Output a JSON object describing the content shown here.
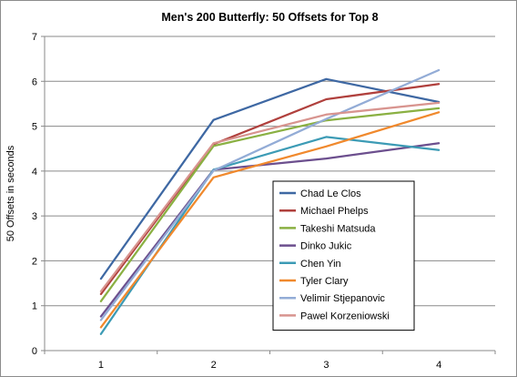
{
  "chart_data": {
    "type": "line",
    "title": "Men's 200 Butterfly: 50 Offsets for Top 8",
    "xlabel": "",
    "ylabel": "50 Offsets in seconds",
    "x": [
      1,
      2,
      3,
      4
    ],
    "xlim": [
      0.5,
      4.5
    ],
    "ylim": [
      0,
      7
    ],
    "yticks": [
      0,
      1,
      2,
      3,
      4,
      5,
      6,
      7
    ],
    "grid": "horizontal",
    "legend_position": "center-right",
    "series": [
      {
        "name": "Chad Le Clos",
        "color": "#3e68a3",
        "values": [
          1.6,
          5.14,
          6.05,
          5.54
        ]
      },
      {
        "name": "Michael Phelps",
        "color": "#b0403d",
        "values": [
          1.26,
          4.6,
          5.6,
          5.94
        ]
      },
      {
        "name": "Takeshi Matsuda",
        "color": "#8ab042",
        "values": [
          1.1,
          4.56,
          5.13,
          5.4
        ]
      },
      {
        "name": "Dinko Jukic",
        "color": "#6c4f8e",
        "values": [
          0.76,
          4.03,
          4.28,
          4.62
        ]
      },
      {
        "name": "Chen Yin",
        "color": "#3c9bb5",
        "values": [
          0.37,
          4.03,
          4.76,
          4.47
        ]
      },
      {
        "name": "Tyler Clary",
        "color": "#f0892d",
        "values": [
          0.52,
          3.86,
          4.55,
          5.31
        ]
      },
      {
        "name": "Velimir Stjepanovic",
        "color": "#93acd6",
        "values": [
          0.68,
          4.01,
          5.16,
          6.25
        ]
      },
      {
        "name": "Pawel Korzeniowski",
        "color": "#d8948f",
        "values": [
          1.32,
          4.62,
          5.26,
          5.52
        ]
      }
    ]
  }
}
